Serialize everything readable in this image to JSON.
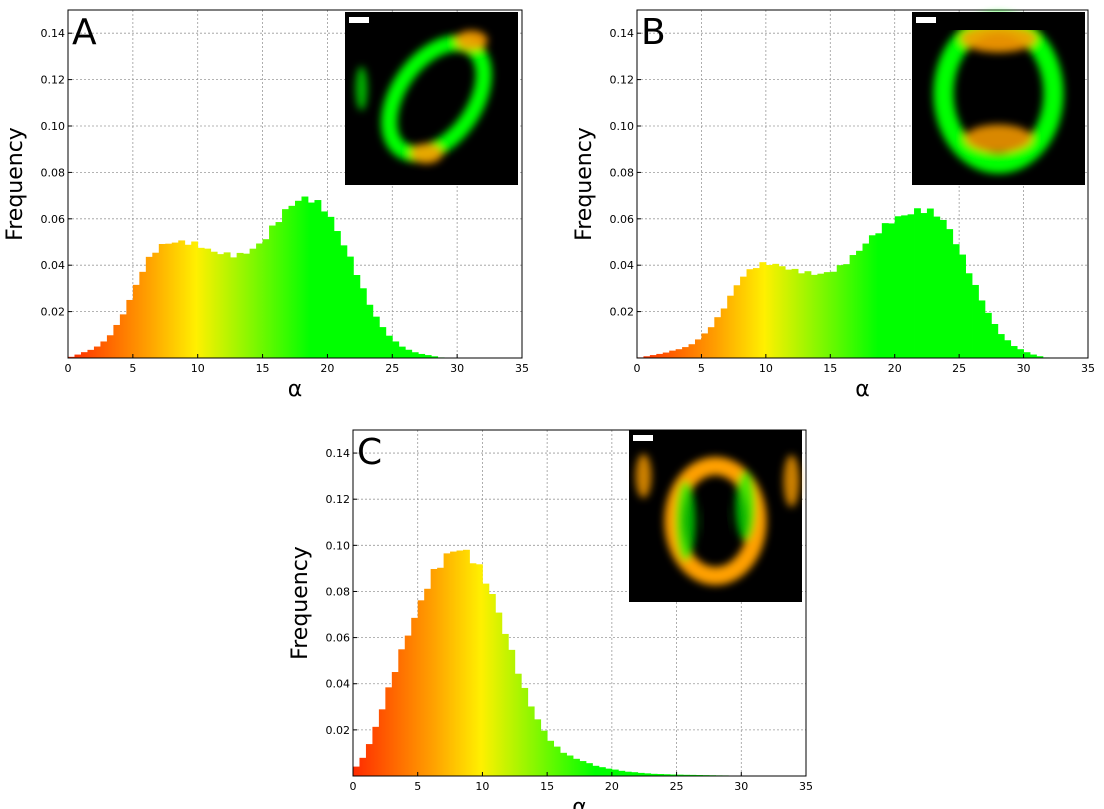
{
  "chart_data": [
    {
      "type": "bar",
      "panel": "A",
      "xlabel": "α",
      "ylabel": "Frequency",
      "xlim": [
        0,
        35
      ],
      "ylim": [
        0,
        0.15
      ],
      "xticks": [
        0,
        5,
        10,
        15,
        20,
        25,
        30,
        35
      ],
      "yticks": [
        0.02,
        0.04,
        0.06,
        0.08,
        0.1,
        0.12,
        0.14
      ],
      "ytick_labels": [
        "0.02",
        "0.04",
        "0.06",
        "0.08",
        "0.10",
        "0.12",
        "0.14"
      ],
      "grid": true,
      "bin_width": 0.5,
      "x": [
        0,
        2,
        3,
        4,
        5,
        6,
        7,
        8,
        9,
        10,
        11,
        12,
        13,
        14,
        15,
        16,
        17,
        18,
        19,
        20,
        21,
        22,
        23,
        24,
        25,
        26,
        27,
        28,
        29
      ],
      "values": [
        0.0,
        0.004,
        0.008,
        0.016,
        0.028,
        0.041,
        0.048,
        0.05,
        0.05,
        0.049,
        0.046,
        0.045,
        0.044,
        0.046,
        0.05,
        0.058,
        0.065,
        0.069,
        0.068,
        0.063,
        0.052,
        0.04,
        0.026,
        0.015,
        0.008,
        0.004,
        0.002,
        0.001,
        0.0
      ],
      "inset": {
        "type": "image",
        "scale_bar": true
      }
    },
    {
      "type": "bar",
      "panel": "B",
      "xlabel": "α",
      "ylabel": "Frequency",
      "xlim": [
        0,
        35
      ],
      "ylim": [
        0,
        0.15
      ],
      "xticks": [
        0,
        5,
        10,
        15,
        20,
        25,
        30,
        35
      ],
      "yticks": [
        0.02,
        0.04,
        0.06,
        0.08,
        0.1,
        0.12,
        0.14
      ],
      "ytick_labels": [
        "0.02",
        "0.04",
        "0.06",
        "0.08",
        "0.10",
        "0.12",
        "0.14"
      ],
      "grid": true,
      "bin_width": 0.5,
      "x": [
        0,
        2,
        4,
        5,
        6,
        7,
        8,
        9,
        10,
        11,
        12,
        13,
        14,
        15,
        16,
        17,
        18,
        19,
        20,
        21,
        22,
        23,
        24,
        25,
        26,
        27,
        28,
        29,
        30,
        31,
        32
      ],
      "values": [
        0.0,
        0.002,
        0.005,
        0.009,
        0.015,
        0.024,
        0.034,
        0.039,
        0.041,
        0.04,
        0.038,
        0.037,
        0.036,
        0.037,
        0.04,
        0.045,
        0.051,
        0.056,
        0.06,
        0.062,
        0.064,
        0.063,
        0.058,
        0.047,
        0.034,
        0.022,
        0.012,
        0.006,
        0.003,
        0.001,
        0.0
      ],
      "inset": {
        "type": "image",
        "scale_bar": true
      }
    },
    {
      "type": "bar",
      "panel": "C",
      "xlabel": "α",
      "ylabel": "Frequency",
      "xlim": [
        0,
        35
      ],
      "ylim": [
        0,
        0.15
      ],
      "xticks": [
        0,
        5,
        10,
        15,
        20,
        25,
        30,
        35
      ],
      "yticks": [
        0.02,
        0.04,
        0.06,
        0.08,
        0.1,
        0.12,
        0.14
      ],
      "ytick_labels": [
        "0.02",
        "0.04",
        "0.06",
        "0.08",
        "0.10",
        "0.12",
        "0.14"
      ],
      "grid": true,
      "bin_width": 0.5,
      "x": [
        0,
        1,
        2,
        3,
        4,
        5,
        6,
        7,
        8,
        9,
        10,
        11,
        12,
        13,
        14,
        15,
        16,
        17,
        18,
        19,
        20,
        21,
        22,
        23,
        25,
        28,
        31,
        35
      ],
      "values": [
        0.002,
        0.01,
        0.025,
        0.042,
        0.058,
        0.072,
        0.086,
        0.094,
        0.099,
        0.096,
        0.088,
        0.075,
        0.058,
        0.041,
        0.027,
        0.017,
        0.011,
        0.008,
        0.006,
        0.004,
        0.003,
        0.002,
        0.0015,
        0.001,
        0.0006,
        0.0003,
        0.0001,
        0.0
      ],
      "inset": {
        "type": "image",
        "scale_bar": true
      }
    }
  ],
  "colors": {
    "red": "#ff2a00",
    "orange": "#ffa000",
    "yellow": "#fff000",
    "green": "#00ff00",
    "inset_bg": "#000000",
    "scale_bar": "#ffffff"
  }
}
